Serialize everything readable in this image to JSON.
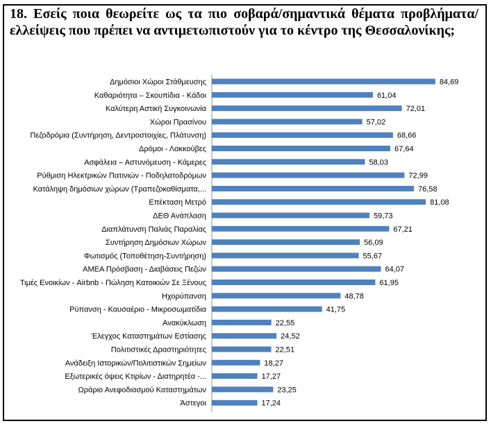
{
  "question": {
    "text": "18. Εσείς ποια θεωρείτε ως τα πιο σοβαρά/σημαντικά θέματα προβλήματα/ελλείψεις που πρέπει να αντιμετωπιστούν για το κέντρο της Θεσσαλονίκης;"
  },
  "colors": {
    "bar": "#4f81bd",
    "axis": "#8c8c8c",
    "frame": "#000000"
  },
  "chart_data": {
    "type": "bar",
    "orientation": "horizontal",
    "xlim": [
      0,
      100
    ],
    "grid": false,
    "legend": "none",
    "categories": [
      "Δημόσιοι Χώροι Στάθμευσης",
      "Καθαριότητα – Σκουπίδια - Κάδοι",
      "Καλύτερη Αστική Συγκοινωνία",
      "Χώροι Πρασίνου",
      "Πεζοδρόμια (Συντήρηση, Δεντροστοιχίες, Πλάτυνση)",
      "Δρόμοι - Λακκούβες",
      "Ασφάλεια – Αστυνόμευση - Κάμερες",
      "Ρύθμιση Ηλεκτρικών Πατινιών - Ποδηλατοδρόμων",
      "Κατάληψη δημόσιων χώρων (Τραπεζοκαθίσματα,...",
      "Επέκταση Μετρό",
      "ΔΕΘ Ανάπλαση",
      "Διαπλάτυνση Παλιάς Παραλίας",
      "Συντήρηση Δημόσιων Χώρων",
      "Φωτισμός (Τοποθέτηση-Συντήρηση)",
      "ΑΜΕΑ Πρόσβαση - Διαβάσεις Πεζών",
      "Τιμές Ενοικίων - Airbnb - Πώληση Κατοικιών Σε Ξένους",
      "Ηχορύπανση",
      "Ρύπανση - Καυσαέριο - Μικροσωματίδια",
      "Ανακύκλωση",
      "Έλεγχος Καταστημάτων Εστίασης",
      "Πολιτιστικές Δραστηριότητες",
      "Ανάδειξη Ιστορικών/Πολιτιστικών Σημείων",
      "Εξωτερικές όψεις Κτιρίων - Διατηρητέα -...",
      "Ωράριο Ανεφοδιασμού Καταστημάτων",
      "Άστεγοι"
    ],
    "values": [
      84.69,
      61.04,
      72.01,
      57.02,
      68.66,
      67.64,
      58.03,
      72.99,
      76.58,
      81.08,
      59.73,
      67.21,
      56.09,
      55.67,
      64.07,
      61.95,
      48.78,
      41.75,
      22.55,
      24.52,
      22.51,
      18.27,
      17.27,
      23.25,
      17.24
    ],
    "value_labels": [
      "84,69",
      "61,04",
      "72,01",
      "57,02",
      "68,66",
      "67,64",
      "58,03",
      "72,99",
      "76,58",
      "81,08",
      "59,73",
      "67,21",
      "56,09",
      "55,67",
      "64,07",
      "61,95",
      "48,78",
      "41,75",
      "22,55",
      "24,52",
      "22,51",
      "18,27",
      "17,27",
      "23,25",
      "17,24"
    ]
  }
}
